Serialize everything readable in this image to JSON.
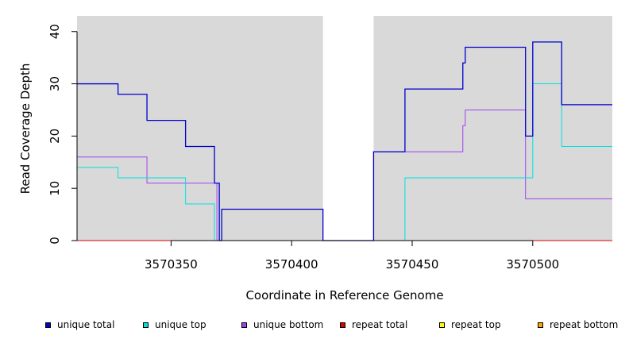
{
  "chart_data": {
    "type": "line",
    "step": true,
    "title": "",
    "xlabel": "Coordinate in Reference Genome",
    "ylabel": "Read Coverage Depth",
    "xlim": [
      3570311,
      3570533
    ],
    "ylim": [
      0,
      43
    ],
    "x_ticks": [
      3570350,
      3570400,
      3570450,
      3570500
    ],
    "y_ticks": [
      0,
      10,
      20,
      30,
      40
    ],
    "grid": false,
    "background_color": "#d9d9d9",
    "gap_region": [
      3570413,
      3570434
    ],
    "legend_position": "bottom",
    "series": [
      {
        "name": "unique total",
        "color": "#0000cc",
        "x": [
          3570311,
          3570328,
          3570340,
          3570356,
          3570368,
          3570370,
          3570371,
          3570413,
          3570434,
          3570447,
          3570471,
          3570472,
          3570497,
          3570500,
          3570512,
          3570533
        ],
        "y": [
          30,
          28,
          23,
          18,
          11,
          0,
          6,
          0,
          17,
          29,
          34,
          37,
          20,
          38,
          26,
          26
        ]
      },
      {
        "name": "unique top",
        "color": "#00e0e0",
        "x": [
          3570311,
          3570328,
          3570356,
          3570368,
          3570447,
          3570500,
          3570512,
          3570533
        ],
        "y": [
          14,
          12,
          7,
          0,
          12,
          30,
          18,
          18
        ]
      },
      {
        "name": "unique bottom",
        "color": "#a040f0",
        "x": [
          3570311,
          3570340,
          3570368,
          3570369,
          3570434,
          3570471,
          3570472,
          3570497,
          3570533
        ],
        "y": [
          16,
          11,
          11,
          0,
          17,
          22,
          25,
          8,
          8
        ]
      },
      {
        "name": "repeat total",
        "color": "#e00000",
        "x": [
          3570311,
          3570533
        ],
        "y": [
          0,
          0
        ]
      },
      {
        "name": "repeat top",
        "color": "#ffff00",
        "x": [
          3570311,
          3570533
        ],
        "y": [
          0,
          0
        ]
      },
      {
        "name": "repeat bottom",
        "color": "#ffa500",
        "x": [
          3570311,
          3570533
        ],
        "y": [
          0,
          0
        ]
      }
    ]
  }
}
